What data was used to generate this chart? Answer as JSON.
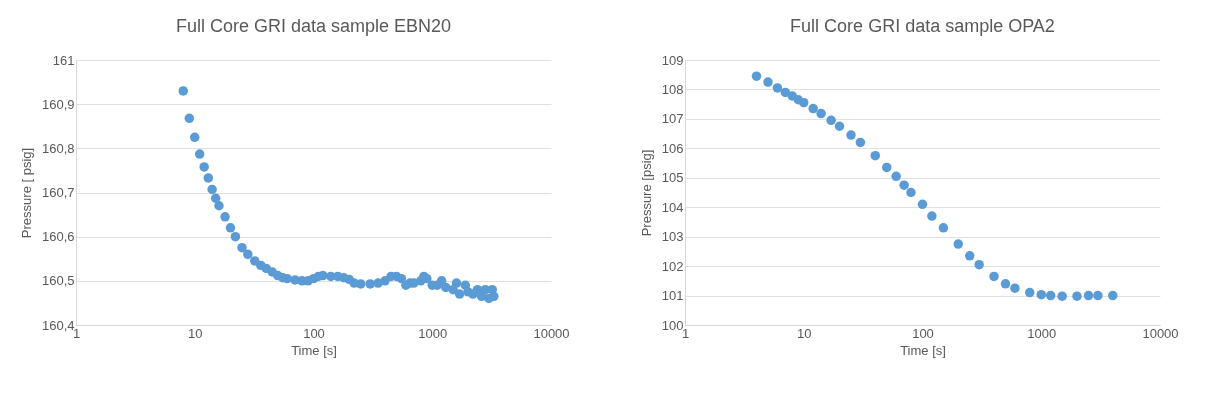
{
  "chart_data": [
    {
      "type": "scatter",
      "title": "Full Core GRI data sample EBN20",
      "xlabel": "Time [s]",
      "ylabel": "Pressure [ psig]",
      "log": "x",
      "grid": "y",
      "marker": "circle",
      "xlim": [
        1,
        10000
      ],
      "xticks": [
        1,
        10,
        100,
        1000,
        10000
      ],
      "ylim": [
        160.4,
        161
      ],
      "yticks": [
        {
          "value": 160.4,
          "label": "160,4"
        },
        {
          "value": 160.5,
          "label": "160,5"
        },
        {
          "value": 160.6,
          "label": "160,6"
        },
        {
          "value": 160.7,
          "label": "160,7"
        },
        {
          "value": 160.8,
          "label": "160,8"
        },
        {
          "value": 160.9,
          "label": "160,9"
        },
        161
      ],
      "series": [
        {
          "color": "#5b9bd5",
          "x": [
            8,
            9,
            10,
            11,
            12,
            13,
            14,
            15,
            16,
            18,
            20,
            22,
            25,
            28,
            32,
            36,
            40,
            45,
            50,
            55,
            60,
            70,
            80,
            90,
            100,
            110,
            120,
            140,
            160,
            180,
            200,
            220,
            250,
            300,
            350,
            400,
            450,
            500,
            550,
            600,
            650,
            700,
            800,
            850,
            900,
            1000,
            1100,
            1200,
            1300,
            1500,
            1600,
            1700,
            1900,
            2000,
            2200,
            2400,
            2600,
            2800,
            3000,
            3200,
            3300
          ],
          "values": [
            160.93,
            160.868,
            160.825,
            160.787,
            160.758,
            160.733,
            160.707,
            160.687,
            160.67,
            160.645,
            160.62,
            160.6,
            160.575,
            160.56,
            160.545,
            160.535,
            160.528,
            160.52,
            160.512,
            160.507,
            160.505,
            160.502,
            160.5,
            160.5,
            160.505,
            160.51,
            160.512,
            160.51,
            160.51,
            160.507,
            160.503,
            160.495,
            160.493,
            160.493,
            160.495,
            160.5,
            160.51,
            160.51,
            160.505,
            160.49,
            160.495,
            160.495,
            160.5,
            160.51,
            160.505,
            160.49,
            160.49,
            160.5,
            160.485,
            160.48,
            160.495,
            160.47,
            160.49,
            160.475,
            160.47,
            160.48,
            160.465,
            160.48,
            160.46,
            160.48,
            160.465
          ]
        }
      ]
    },
    {
      "type": "scatter",
      "title": "Full Core GRI data sample OPA2",
      "xlabel": "Time [s]",
      "ylabel": "Pressure [psig]",
      "log": "x",
      "grid": "y",
      "marker": "circle",
      "xlim": [
        1,
        10000
      ],
      "xticks": [
        1,
        10,
        100,
        1000,
        10000
      ],
      "ylim": [
        100,
        109
      ],
      "yticks": [
        100,
        101,
        102,
        103,
        104,
        105,
        106,
        107,
        108,
        109
      ],
      "series": [
        {
          "color": "#5b9bd5",
          "x": [
            4,
            5,
            6,
            7,
            8,
            9,
            10,
            12,
            14,
            17,
            20,
            25,
            30,
            40,
            50,
            60,
            70,
            80,
            100,
            120,
            150,
            200,
            250,
            300,
            400,
            500,
            600,
            800,
            1000,
            1200,
            1500,
            2000,
            2500,
            3000,
            4000
          ],
          "values": [
            108.45,
            108.25,
            108.05,
            107.9,
            107.78,
            107.65,
            107.55,
            107.35,
            107.18,
            106.95,
            106.75,
            106.45,
            106.2,
            105.75,
            105.35,
            105.05,
            104.75,
            104.5,
            104.1,
            103.7,
            103.3,
            102.75,
            102.35,
            102.05,
            101.65,
            101.4,
            101.25,
            101.1,
            101.03,
            101.0,
            100.98,
            100.98,
            101.0,
            101.0,
            101.0
          ]
        }
      ]
    }
  ]
}
